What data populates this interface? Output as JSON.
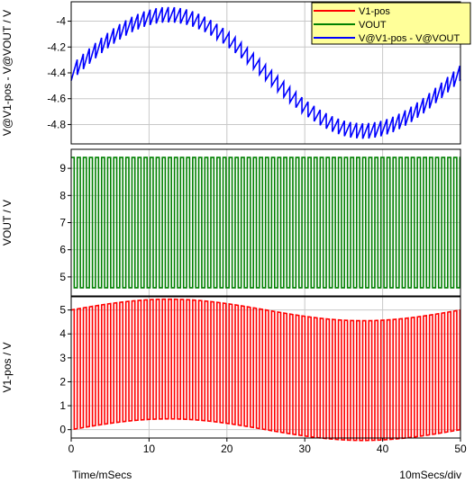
{
  "chart_data": {
    "type": "line",
    "x_unit_label": "Time/mSecs",
    "x_div_label": "10mSecs/div",
    "xlim": [
      0,
      50
    ],
    "xticks": [
      0,
      10,
      20,
      30,
      40,
      50
    ],
    "grid": true,
    "legend": {
      "placement": "top-right",
      "entries": [
        {
          "name": "V1-pos",
          "color": "#ff0000"
        },
        {
          "name": "VOUT",
          "color": "#008000"
        },
        {
          "name": "V@V1-pos - V@VOUT",
          "color": "#0000ff"
        }
      ]
    },
    "panels": [
      {
        "id": "diff",
        "ylabel": "V@V1-pos - V@VOUT / V",
        "ylim": [
          -4.95,
          -3.85
        ],
        "yticks": [
          -4.8,
          -4.6,
          -4.4,
          -4.2,
          -4
        ],
        "ytick_labels": [
          "-4.8",
          "-4.6",
          "-4.4",
          "-4.2",
          "-4"
        ],
        "series": {
          "name": "V@V1-pos - V@VOUT",
          "color": "#0000ff",
          "form": "sine plus sawtooth ripple",
          "offset": -4.4,
          "amplitude": 0.45,
          "period_ms": 50,
          "phase_ms": 0,
          "ripple_pp": 0.12,
          "switch_period_ms": 0.78
        }
      },
      {
        "id": "vout",
        "ylabel": "VOUT / V",
        "ylim": [
          4.3,
          9.7
        ],
        "yticks": [
          5,
          6,
          7,
          8,
          9
        ],
        "ytick_labels": [
          "5",
          "6",
          "7",
          "8",
          "9"
        ],
        "series": {
          "name": "VOUT",
          "color": "#008000",
          "form": "square wave",
          "high": 9.4,
          "low": 4.6,
          "switch_period_ms": 0.78
        }
      },
      {
        "id": "v1pos",
        "ylabel": "V1-pos / V",
        "ylim": [
          -0.35,
          5.55
        ],
        "yticks": [
          0,
          1,
          2,
          3,
          4,
          5
        ],
        "ytick_labels": [
          "0",
          "1",
          "2",
          "3",
          "4",
          "5"
        ],
        "series": {
          "name": "V1-pos",
          "color": "#ff0000",
          "form": "square wave with sinusoidal envelope",
          "high_offset": 5.0,
          "low_offset": 0.0,
          "envelope_amplitude": 0.45,
          "period_ms": 50,
          "switch_period_ms": 0.78
        }
      }
    ]
  }
}
